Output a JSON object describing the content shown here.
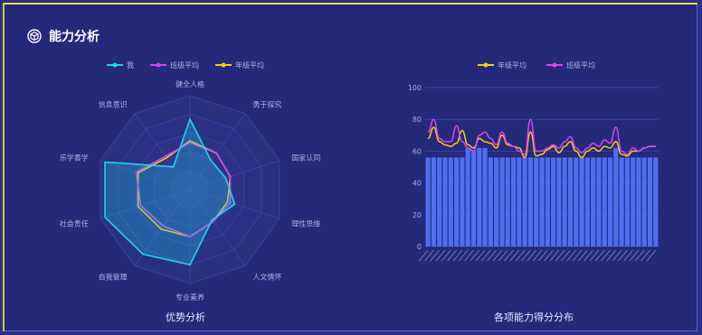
{
  "panel": {
    "title": "能力分析",
    "icon": "cube-icon"
  },
  "colors": {
    "me": "#22d3ee",
    "class_avg": "#d946ef",
    "grade_avg": "#facc15",
    "bar": "#4f6ef0"
  },
  "radar": {
    "caption": "优势分析",
    "legend": [
      "我",
      "班级平均",
      "年级平均"
    ],
    "indicators": [
      "健全人格",
      "勇于探究",
      "国家认同",
      "理性思维",
      "人文情怀",
      "专业素养",
      "自我管理",
      "社会责任",
      "乐学善学",
      "信息意识"
    ],
    "series": {
      "me": [
        75,
        38,
        40,
        50,
        40,
        80,
        85,
        95,
        95,
        30
      ],
      "class_avg": [
        50,
        48,
        45,
        45,
        42,
        50,
        48,
        55,
        60,
        44
      ],
      "grade_avg": [
        52,
        48,
        45,
        42,
        42,
        50,
        52,
        58,
        58,
        42
      ]
    }
  },
  "chart_data": [
    {
      "type": "radar",
      "legend": [
        "我",
        "班级平均",
        "年级平均"
      ],
      "indicators": [
        "健全人格",
        "勇于探究",
        "国家认同",
        "理性思维",
        "人文情怀",
        "专业素养",
        "自我管理",
        "社会责任",
        "乐学善学",
        "信息意识"
      ],
      "series": [
        {
          "name": "我",
          "values": [
            75,
            38,
            40,
            50,
            40,
            80,
            85,
            95,
            95,
            30
          ]
        },
        {
          "name": "班级平均",
          "values": [
            50,
            48,
            45,
            45,
            42,
            50,
            48,
            55,
            60,
            44
          ]
        },
        {
          "name": "年级平均",
          "values": [
            52,
            48,
            45,
            42,
            42,
            50,
            52,
            58,
            58,
            42
          ]
        }
      ],
      "max": 100
    },
    {
      "type": "bar",
      "title": "各项能力得分分布",
      "legend": [
        "年级平均",
        "班级平均"
      ],
      "ylim": [
        0,
        100
      ],
      "yticks": [
        0,
        20,
        40,
        60,
        80,
        100
      ],
      "bars": [
        56,
        56,
        56,
        56,
        56,
        56,
        56,
        62,
        60,
        62,
        62,
        56,
        56,
        56,
        56,
        56,
        56,
        56,
        56,
        56,
        56,
        56,
        56,
        56,
        56,
        56,
        56,
        56,
        56,
        56,
        56,
        56,
        56,
        62,
        56,
        56,
        56,
        56,
        56,
        56,
        56
      ],
      "series": [
        {
          "name": "年级平均",
          "values": [
            68,
            75,
            66,
            64,
            63,
            65,
            73,
            64,
            62,
            68,
            66,
            65,
            62,
            70,
            64,
            63,
            62,
            56,
            72,
            57,
            58,
            61,
            63,
            59,
            63,
            66,
            60,
            56,
            60,
            62,
            60,
            63,
            62,
            66,
            58,
            57,
            60,
            60,
            62,
            63,
            63
          ]
        },
        {
          "name": "班级平均",
          "values": [
            72,
            80,
            68,
            66,
            66,
            76,
            66,
            62,
            60,
            70,
            72,
            68,
            64,
            72,
            65,
            63,
            60,
            58,
            80,
            60,
            60,
            62,
            64,
            62,
            66,
            69,
            62,
            59,
            62,
            65,
            63,
            67,
            65,
            75,
            60,
            58,
            62,
            60,
            62,
            63,
            63
          ]
        }
      ]
    }
  ]
}
